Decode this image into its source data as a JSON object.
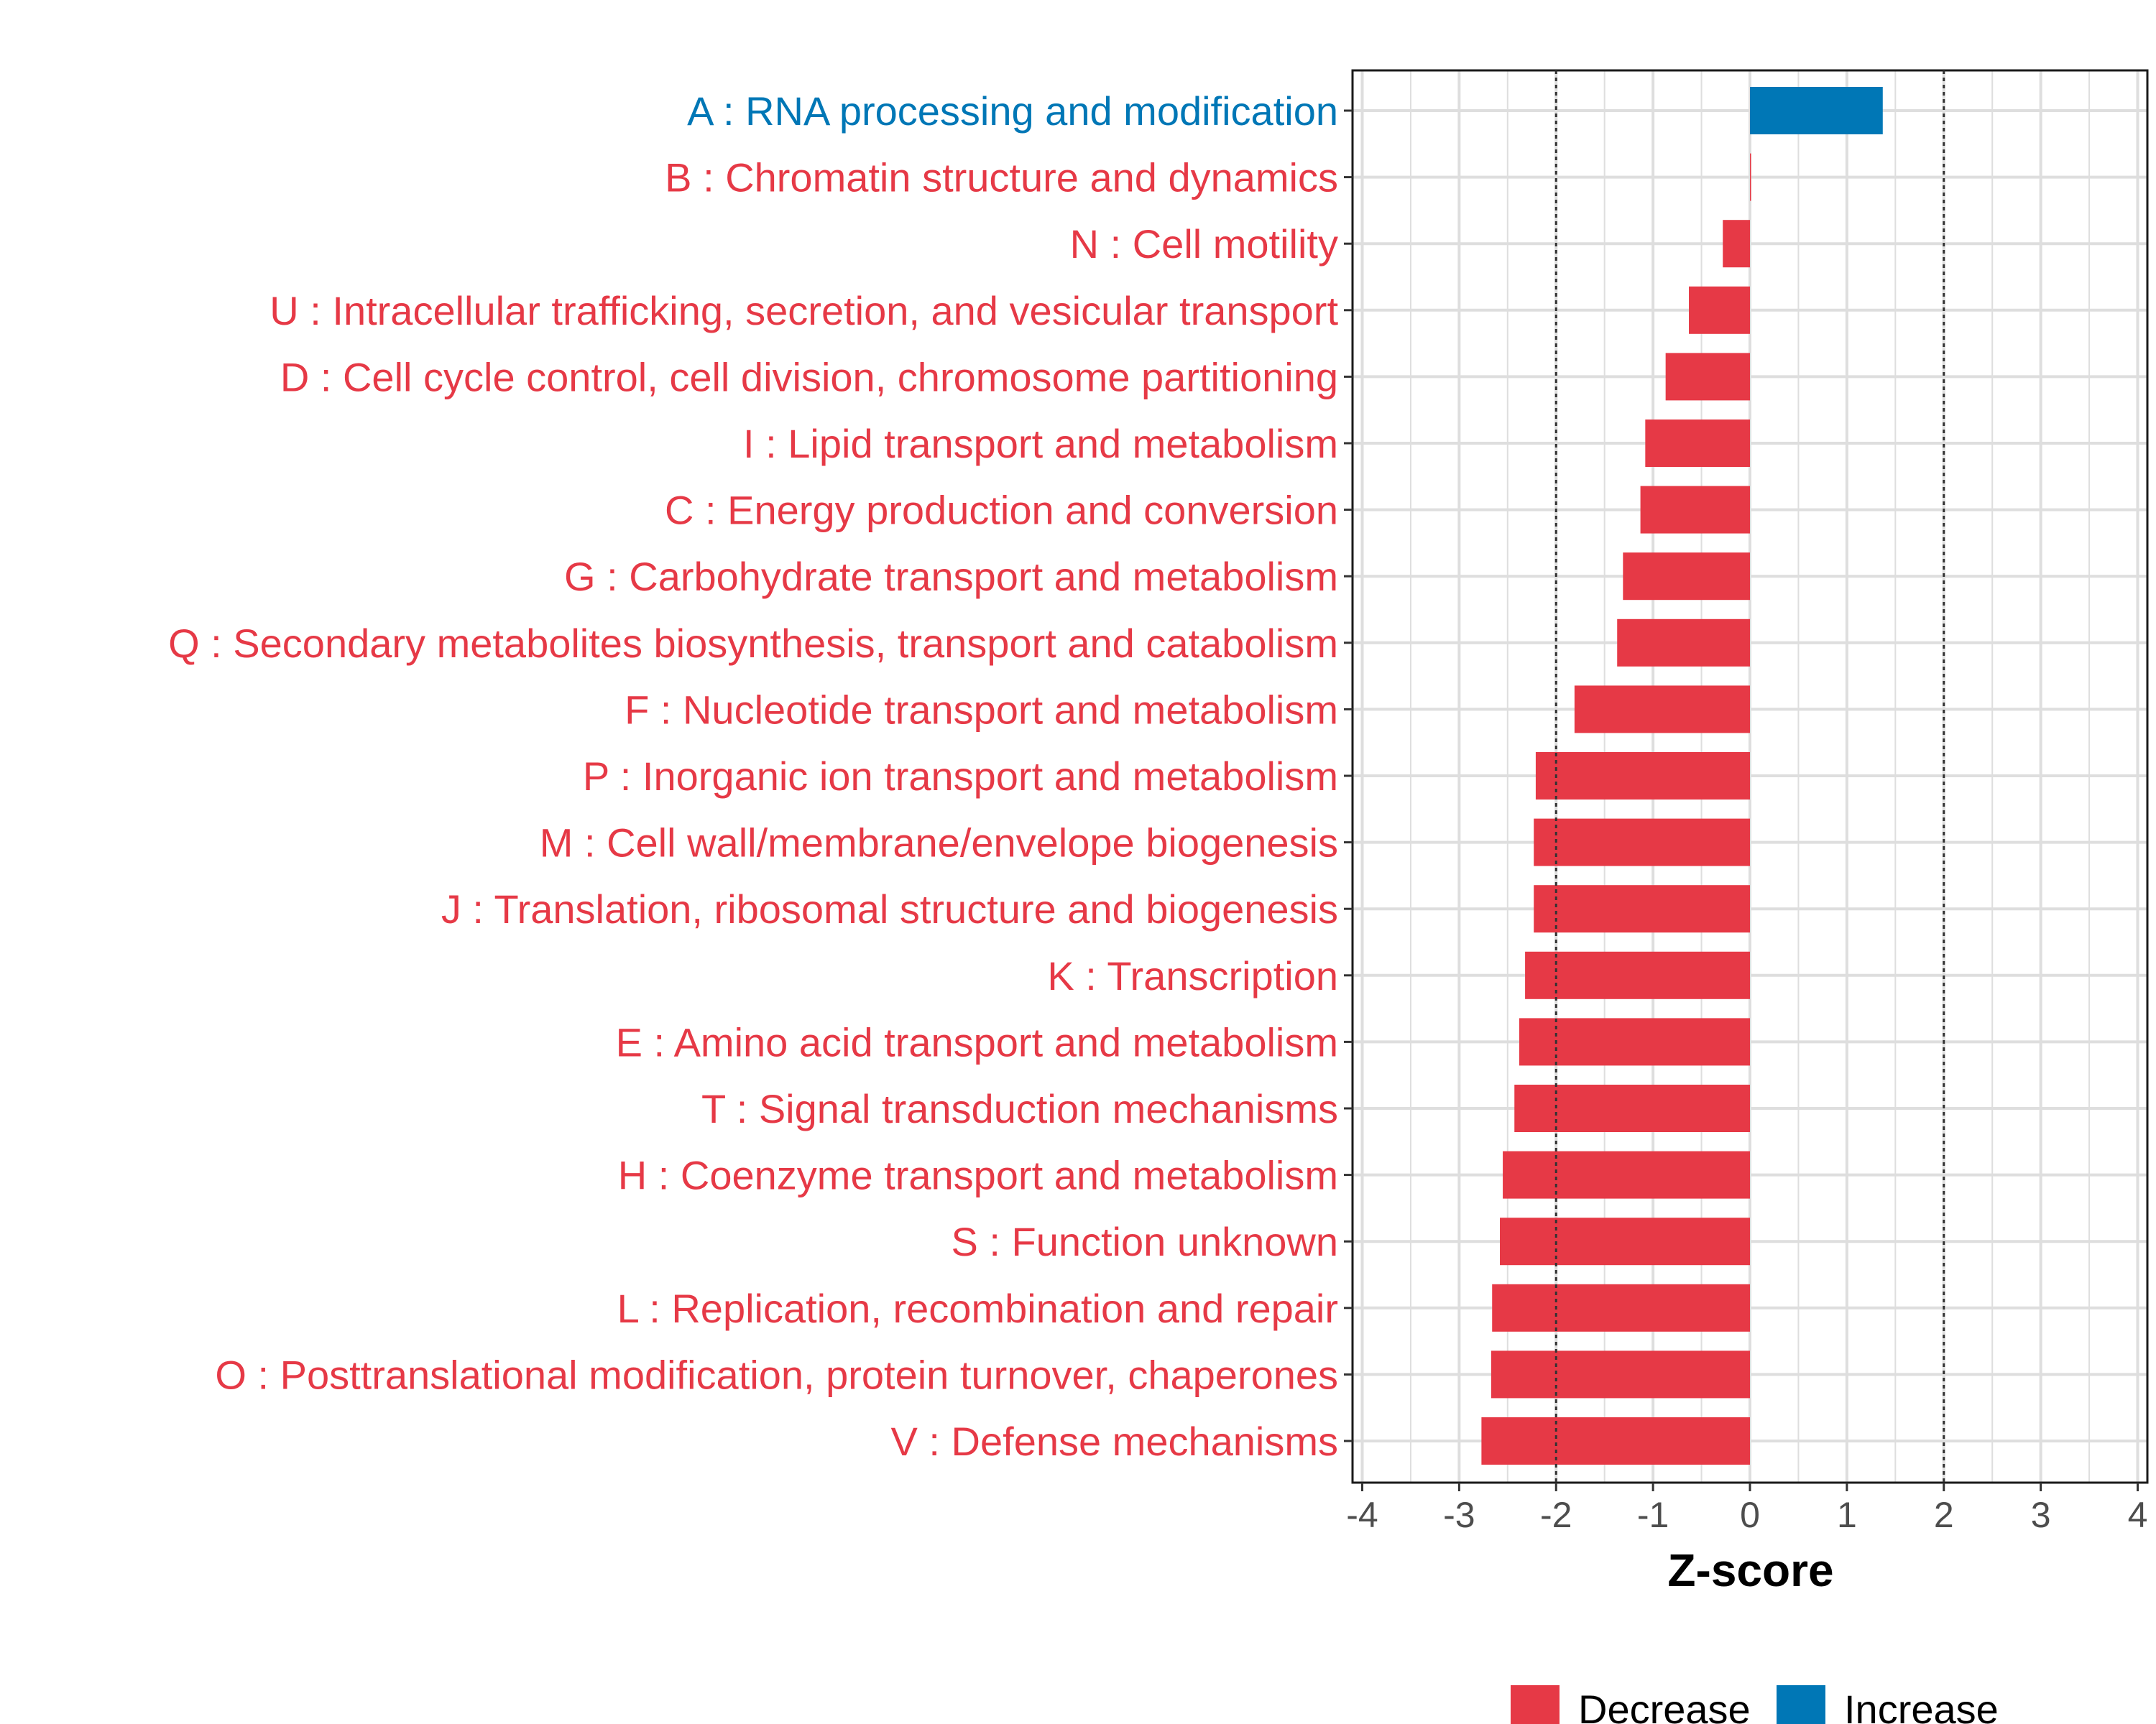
{
  "chart_data": {
    "type": "bar",
    "orientation": "horizontal",
    "xlabel": "Z-score",
    "xlim": [
      -4.1,
      4.1
    ],
    "xticks": [
      -4,
      -3,
      -2,
      -1,
      0,
      1,
      2,
      3,
      4
    ],
    "xtick_labels": [
      "-4",
      "-3",
      "-2",
      "-1",
      "0",
      "1",
      "2",
      "3",
      "4"
    ],
    "reference_lines": [
      -2,
      2
    ],
    "categories": [
      "A : RNA processing and modification",
      "B : Chromatin structure and dynamics",
      "N : Cell motility",
      "U : Intracellular trafficking, secretion, and vesicular transport",
      "D : Cell cycle control, cell division, chromosome partitioning",
      "I : Lipid transport and metabolism",
      "C : Energy production and conversion",
      "G : Carbohydrate transport and metabolism",
      "Q : Secondary metabolites biosynthesis, transport and catabolism",
      "F : Nucleotide transport and metabolism",
      "P : Inorganic ion transport and metabolism",
      "M : Cell wall/membrane/envelope biogenesis",
      "J : Translation, ribosomal structure and biogenesis",
      "K : Transcription",
      "E : Amino acid transport and metabolism",
      "T : Signal transduction mechanisms",
      "H : Coenzyme transport and metabolism",
      "S : Function unknown",
      "L : Replication, recombination and repair",
      "O : Posttranslational modification, protein turnover, chaperones",
      "V : Defense mechanisms"
    ],
    "values": [
      1.37,
      0.0,
      -0.28,
      -0.63,
      -0.87,
      -1.08,
      -1.13,
      -1.31,
      -1.37,
      -1.81,
      -2.21,
      -2.23,
      -2.23,
      -2.32,
      -2.38,
      -2.43,
      -2.55,
      -2.58,
      -2.66,
      -2.67,
      -2.77
    ],
    "groups": [
      "Increase",
      "Decrease",
      "Decrease",
      "Decrease",
      "Decrease",
      "Decrease",
      "Decrease",
      "Decrease",
      "Decrease",
      "Decrease",
      "Decrease",
      "Decrease",
      "Decrease",
      "Decrease",
      "Decrease",
      "Decrease",
      "Decrease",
      "Decrease",
      "Decrease",
      "Decrease",
      "Decrease"
    ],
    "legend": {
      "placement": "bottom",
      "entries": [
        {
          "label": "Decrease",
          "color": "#e63946"
        },
        {
          "label": "Increase",
          "color": "#0077b6"
        }
      ]
    },
    "colors": {
      "Decrease": "#e63946",
      "Increase": "#0077b6"
    }
  }
}
